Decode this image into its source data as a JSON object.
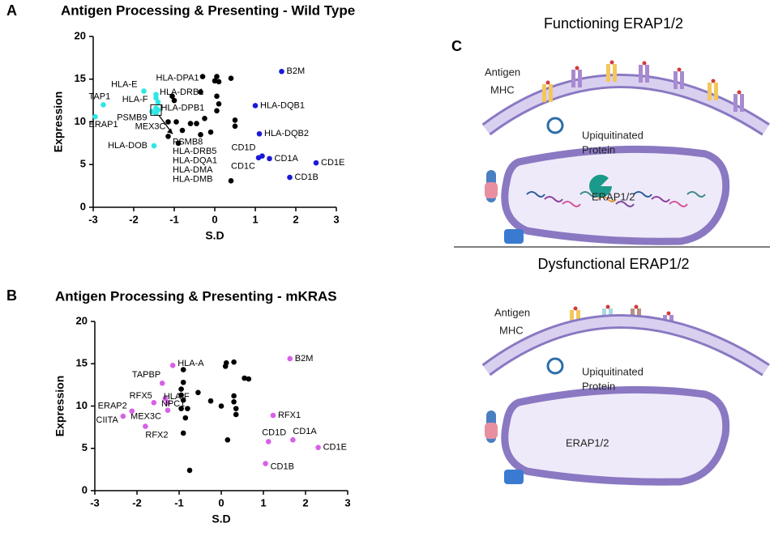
{
  "panels": [
    "A",
    "B",
    "C"
  ],
  "chart_data": [
    {
      "type": "scatter",
      "title": "Antigen Processing & Presenting - Wild Type",
      "xlabel": "S.D",
      "ylabel": "Expression",
      "xlim": [
        -3,
        3
      ],
      "ylim": [
        0,
        20
      ],
      "xticks": [
        -3,
        -2,
        -1,
        0,
        1,
        2,
        3
      ],
      "yticks": [
        0,
        5,
        10,
        15,
        20
      ],
      "series": [
        {
          "color": "#2ee6e6",
          "x": [
            -2.75,
            -2.95,
            -1.75,
            -1.45,
            -1.45,
            -1.4,
            -1.45,
            -1.55,
            -1.5,
            -1.45,
            -1.4
          ],
          "values": [
            12.0,
            10.6,
            13.6,
            12.8,
            13.2,
            12.3,
            11.6,
            11.2,
            7.2,
            11.0,
            11.4
          ],
          "labels": [
            "TAP1",
            "ERAP1",
            "HLA-E",
            "HLA-F",
            "HLA-DPA1",
            "HLA-DRB1",
            "HLA-DPB1",
            "PSMB9",
            "HLA-DOB",
            null,
            null
          ]
        },
        {
          "color": "#1a1ad6",
          "x": [
            1.65,
            1.0,
            1.1,
            1.17,
            1.08,
            1.35,
            2.5,
            1.85
          ],
          "values": [
            15.9,
            11.9,
            8.6,
            6.0,
            5.8,
            5.7,
            5.2,
            3.5
          ],
          "labels": [
            "B2M",
            "HLA-DQB1",
            "HLA-DQB2",
            "CD1D",
            "CD1C",
            "CD1A",
            "CD1E",
            "CD1B"
          ]
        },
        {
          "color": "#000000",
          "x": [
            -1.05,
            -1.0,
            -0.3,
            0.05,
            0.1,
            0.0,
            0.4,
            -0.35,
            0.05,
            0.1,
            0.05,
            0.5,
            0.5,
            -1.15,
            -0.95,
            -0.8,
            -0.6,
            -0.45,
            -0.25,
            -0.1,
            -0.35,
            -1.15,
            -0.9,
            0.4
          ],
          "values": [
            13.0,
            12.5,
            15.3,
            15.3,
            14.7,
            14.8,
            15.1,
            13.5,
            13.0,
            12.1,
            11.3,
            10.2,
            9.5,
            10.0,
            10.0,
            9.0,
            9.8,
            9.8,
            10.4,
            8.8,
            8.5,
            8.3,
            7.5,
            3.1
          ],
          "labels": [
            null,
            null,
            null,
            null,
            null,
            null,
            null,
            null,
            null,
            null,
            null,
            null,
            null,
            "MEX3C",
            null,
            null,
            null,
            null,
            null,
            null,
            null,
            null,
            null,
            null
          ]
        }
      ],
      "annotation": [
        "PSMB8",
        "HLA-DRB5",
        "HLA-DQA1",
        "HLA-DMA",
        "HLA-DMB"
      ]
    },
    {
      "type": "scatter",
      "title": "Antigen Processing & Presenting - mKRAS",
      "xlabel": "S.D",
      "ylabel": "Expression",
      "xlim": [
        -3,
        3
      ],
      "ylim": [
        0,
        20
      ],
      "xticks": [
        -3,
        -2,
        -1,
        0,
        1,
        2,
        3
      ],
      "yticks": [
        0,
        5,
        10,
        15,
        20
      ],
      "series": [
        {
          "color": "#d860e8",
          "x": [
            -1.15,
            -1.4,
            -1.6,
            -1.33,
            -1.27,
            -1.27,
            -2.12,
            -2.33,
            -1.8,
            1.63,
            1.23,
            1.12,
            1.7,
            2.3,
            1.05
          ],
          "values": [
            14.8,
            12.7,
            10.4,
            10.9,
            10.4,
            9.5,
            9.4,
            8.8,
            7.6,
            15.6,
            8.9,
            5.8,
            6.0,
            5.1,
            3.2
          ],
          "labels": [
            "HLA-A",
            "TAPBP",
            "RFX5",
            "HLA-F",
            "NPC1",
            "MEX3C",
            "ERAP2",
            "CIITA",
            "RFX2",
            "B2M",
            "RFX1",
            "CD1D",
            "CD1A",
            "CD1E",
            "CD1B"
          ]
        },
        {
          "color": "#000000",
          "x": [
            -0.9,
            -0.9,
            -0.95,
            -0.95,
            -0.9,
            -0.95,
            -0.8,
            -0.85,
            -0.9,
            -0.75,
            -0.55,
            -0.25,
            0.1,
            0.12,
            0.3,
            0.55,
            0.65,
            0.3,
            0.3,
            0.35,
            0.35,
            0.0,
            0.15
          ],
          "values": [
            14.3,
            12.8,
            12.0,
            11.3,
            10.7,
            9.7,
            9.7,
            8.6,
            6.8,
            2.4,
            11.6,
            10.6,
            14.7,
            15.1,
            15.2,
            13.3,
            13.2,
            11.2,
            10.5,
            9.7,
            9.0,
            10.0,
            6.0
          ]
        }
      ]
    }
  ],
  "diagram": {
    "top": {
      "title": "Functioning ERAP1/2",
      "antigen": "Antigen",
      "mhc": "MHC",
      "protein": [
        "Upiquitinated",
        "Protein"
      ],
      "enzyme": "ERAP1/2"
    },
    "bottom": {
      "title": "Dysfunctional ERAP1/2",
      "antigen": "Antigen",
      "mhc": "MHC",
      "protein": [
        "Upiquitinated",
        "Protein"
      ],
      "enzyme": "ERAP1/2"
    }
  }
}
